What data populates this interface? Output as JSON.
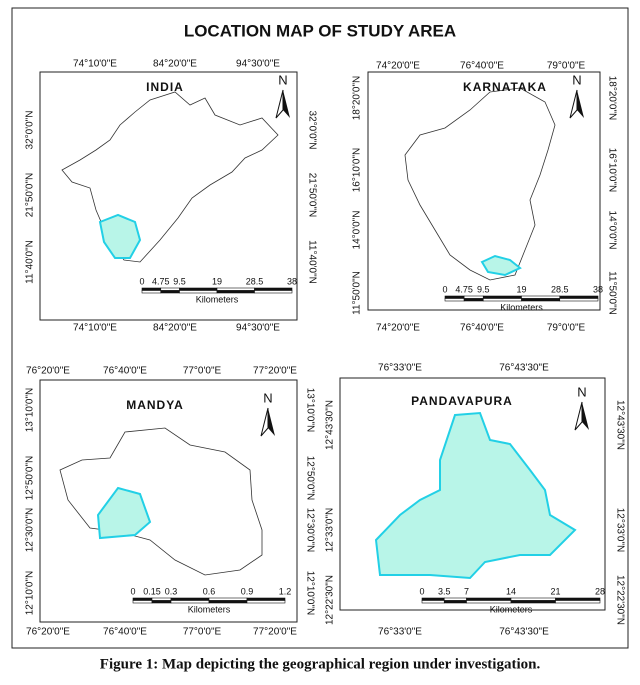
{
  "title": "LOCATION MAP OF STUDY AREA",
  "caption": "Figure 1: Map depicting the geographical region under investigation.",
  "panels": [
    {
      "name": "INDIA",
      "north": "N",
      "top_labels": [
        "74°10'0\"E",
        "84°20'0\"E",
        "94°30'0\"E"
      ],
      "bottom_labels": [
        "74°10'0\"E",
        "84°20'0\"E",
        "94°30'0\"E"
      ],
      "left_labels": [
        "32°0'0\"N",
        "21°50'0\"N",
        "11°40'0\"N"
      ],
      "right_labels": [
        "32°0'0\"N",
        "21°50'0\"N",
        "11°40'0\"N"
      ],
      "scale_labels": [
        0,
        4.75,
        9.5,
        19,
        28.5,
        38
      ],
      "scale_unit": "Kilometers"
    },
    {
      "name": "KARNATAKA",
      "north": "N",
      "top_labels": [
        "74°20'0\"E",
        "76°40'0\"E",
        "79°0'0\"E"
      ],
      "bottom_labels": [
        "74°20'0\"E",
        "76°40'0\"E",
        "79°0'0\"E"
      ],
      "left_labels": [
        "18°20'0\"N",
        "16°10'0\"N",
        "14°0'0\"N",
        "11°50'0\"N"
      ],
      "right_labels": [
        "18°20'0\"N",
        "16°10'0\"N",
        "14°0'0\"N",
        "11°50'0\"N"
      ],
      "scale_labels": [
        0,
        4.75,
        9.5,
        19,
        28.5,
        38
      ],
      "scale_unit": "Kilometers"
    },
    {
      "name": "MANDYA",
      "north": "N",
      "top_labels": [
        "76°20'0\"E",
        "76°40'0\"E",
        "77°0'0\"E",
        "77°20'0\"E"
      ],
      "bottom_labels": [
        "76°20'0\"E",
        "76°40'0\"E",
        "77°0'0\"E",
        "77°20'0\"E"
      ],
      "left_labels": [
        "13°10'0\"N",
        "12°50'0\"N",
        "12°30'0\"N",
        "12°10'0\"N"
      ],
      "right_labels": [
        "13°10'0\"N",
        "12°50'0\"N",
        "12°30'0\"N",
        "12°10'0\"N"
      ],
      "scale_labels": [
        0,
        0.15,
        0.3,
        0.6,
        0.9,
        1.2
      ],
      "scale_unit": "Kilometers"
    },
    {
      "name": "PANDAVAPURA",
      "north": "N",
      "top_labels": [
        "76°33'0\"E",
        "76°43'30\"E"
      ],
      "bottom_labels": [
        "76°33'0\"E",
        "76°43'30\"E"
      ],
      "left_labels": [
        "12°43'30\"N",
        "12°33'0\"N",
        "12°22'30\"N"
      ],
      "right_labels": [
        "12°43'30\"N",
        "12°33'0\"N",
        "12°22'30\"N"
      ],
      "scale_labels": [
        0,
        3.5,
        7,
        14,
        21,
        28
      ],
      "scale_unit": "Kilometers"
    }
  ]
}
